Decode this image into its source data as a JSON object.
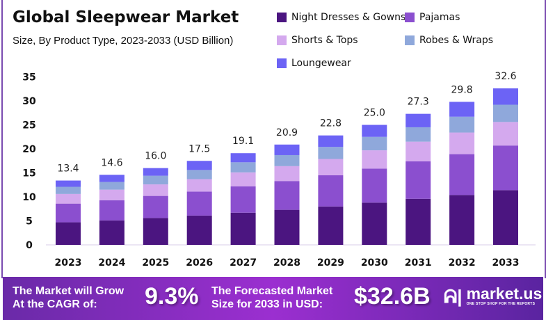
{
  "chart_data": {
    "type": "bar",
    "stacked": true,
    "title": "Global Sleepwear Market",
    "subtitle": "Size, By Product Type, 2023-2033 (USD Billion)",
    "xlabel": "",
    "ylabel": "",
    "ylim": [
      0,
      35
    ],
    "yticks": [
      0,
      5,
      10,
      15,
      20,
      25,
      30,
      35
    ],
    "grid": false,
    "legend_position": "top-right",
    "categories": [
      "2023",
      "2024",
      "2025",
      "2026",
      "2027",
      "2028",
      "2029",
      "2030",
      "2031",
      "2032",
      "2033"
    ],
    "totals": [
      "13.4",
      "14.6",
      "16.0",
      "17.5",
      "19.1",
      "20.9",
      "22.8",
      "25.0",
      "27.3",
      "29.8",
      "32.6"
    ],
    "series": [
      {
        "name": "Night Dresses & Gowns",
        "color": "#4b1580",
        "values": [
          4.7,
          5.1,
          5.6,
          6.1,
          6.7,
          7.3,
          8.0,
          8.8,
          9.6,
          10.4,
          11.4
        ]
      },
      {
        "name": "Pajamas",
        "color": "#8b4fcf",
        "values": [
          3.9,
          4.2,
          4.6,
          5.0,
          5.5,
          6.0,
          6.5,
          7.1,
          7.8,
          8.5,
          9.3
        ]
      },
      {
        "name": "Shorts & Tops",
        "color": "#d4a9ee",
        "values": [
          2.0,
          2.2,
          2.4,
          2.6,
          2.9,
          3.1,
          3.4,
          3.8,
          4.1,
          4.5,
          4.9
        ]
      },
      {
        "name": "Robes & Wraps",
        "color": "#8fa8db",
        "values": [
          1.5,
          1.6,
          1.8,
          1.9,
          2.1,
          2.3,
          2.5,
          2.8,
          3.0,
          3.3,
          3.6
        ]
      },
      {
        "name": "Loungewear",
        "color": "#6c63f5",
        "values": [
          1.3,
          1.5,
          1.6,
          1.9,
          1.9,
          2.2,
          2.4,
          2.5,
          2.8,
          3.1,
          3.4
        ]
      }
    ]
  },
  "footer": {
    "cagr_label_1": "The Market will Grow",
    "cagr_label_2": "At the CAGR of:",
    "cagr_value": "9.3%",
    "forecast_label_1": "The Forecasted Market",
    "forecast_label_2": "Size for 2033 in USD:",
    "forecast_value": "$32.6B",
    "brand": "market.us",
    "brand_tagline": "ONE STOP SHOP FOR THE REPORTS"
  }
}
